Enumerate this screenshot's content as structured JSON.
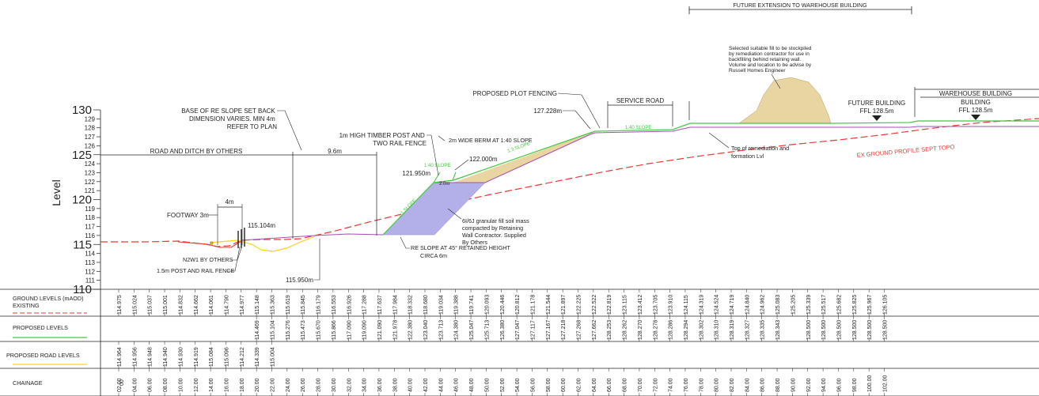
{
  "axis": {
    "ylabel": "Level",
    "ticks": [
      "130",
      "129",
      "128",
      "127",
      "126",
      "125",
      "124",
      "123",
      "122",
      "121",
      "120",
      "119",
      "118",
      "117",
      "116",
      "115",
      "114",
      "113",
      "112",
      "111",
      "110"
    ]
  },
  "annotations": {
    "future_extension": "FUTURE EXTENSION TO WAREHOUSE BUILDING",
    "fill_note": [
      "Selected suitable fill to be stockpiled",
      "by remediation contractor for use in",
      "backfilling behind retaining wall.",
      "Volume and location to be advise by",
      "Russell Homes Engineer"
    ],
    "plot_fencing": "PROPOSED PLOT FENCING",
    "service_road": "SERVICE ROAD",
    "future_building": "FUTURE BUILDING",
    "future_ffl": "FFL 128.5m",
    "warehouse_building": "WAREHOUSE BUILDING",
    "building": "BUILDING",
    "building_ffl": "FFL 128.5m",
    "base_re_slope": [
      "BASE OF RE SLOPE SET BACK",
      "DIMENSION VARIES. MIN 4m",
      "REFER TO PLAN"
    ],
    "timber_post": [
      "1m HIGH TIMBER POST AND",
      "TWO RAIL FENCE"
    ],
    "berm": "2m WIDE BERM AT 1:40 SLOPE",
    "level_127": "127.228m",
    "level_122": "122.000m",
    "level_121": "121.950m",
    "berm_width": "2.0m",
    "slope_140_a": "1:40 SLOPE",
    "slope_140_b": "1:40 SLOPE",
    "slope_13": "1:3 SLOPE",
    "slope_11": "1:1 SLOPE",
    "road_ditch": "ROAD AND DITCH BY OTHERS",
    "dim_96": "9.6m",
    "dim_4m": "4m",
    "footway": "FOOTWAY 3m",
    "level_115": "115.104m",
    "n2w1": "N2W1 BY OTHERS",
    "post_rail": "1.5m POST AND RAIL FENCE",
    "level_115950": "115.950m",
    "granular": [
      "6I/6J granular fill soil mass",
      "compacted by Retaining",
      "Wall Contractor. Supplied",
      "By Others"
    ],
    "re_slope": [
      "RE SLOPE AT 45° RETAINED HEIGHT",
      "CIRCA 6m"
    ],
    "remediation": [
      "Top of remediation and",
      "formation Lvl"
    ],
    "ex_ground": "EX GROUND PROFILE SEPT TOPO"
  },
  "table": {
    "ground_label": [
      "GROUND LEVELS (mAOD)",
      "EXISTING"
    ],
    "proposed_label": "PROPOSED LEVELS",
    "road_label": "PROPOSED ROAD LEVELS",
    "chainage_label": "CHAINAGE",
    "chainage_start": "00",
    "chainage": [
      "02.00",
      "04.00",
      "06.00",
      "08.00",
      "10.00",
      "12.00",
      "14.00",
      "16.00",
      "18.00",
      "20.00",
      "22.00",
      "24.00",
      "26.00",
      "28.00",
      "30.00",
      "32.00",
      "34.00",
      "36.00",
      "38.00",
      "40.00",
      "42.00",
      "44.00",
      "46.00",
      "48.00",
      "50.00",
      "52.00",
      "54.00",
      "56.00",
      "58.00",
      "60.00",
      "62.00",
      "64.00",
      "66.00",
      "68.00",
      "70.00",
      "72.00",
      "74.00",
      "76.00",
      "78.00",
      "80.00",
      "82.00",
      "84.00",
      "86.00",
      "88.00",
      "90.00",
      "92.00",
      "94.00",
      "96.00",
      "98.00",
      "100.00",
      "102.00"
    ],
    "ground": [
      "114.975",
      "115.024",
      "115.037",
      "115.001",
      "114.832",
      "114.662",
      "114.061",
      "114.790",
      "114.977",
      "115.148",
      "115.363",
      "115.619",
      "115.845",
      "116.179",
      "116.553",
      "116.926",
      "117.288",
      "117.637",
      "117.984",
      "118.332",
      "118.680",
      "119.034",
      "119.388",
      "119.741",
      "120.093",
      "120.446",
      "120.812",
      "121.178",
      "121.544",
      "121.897",
      "122.225",
      "122.522",
      "122.819",
      "123.115",
      "123.412",
      "123.705",
      "123.910",
      "124.115",
      "124.319",
      "124.524",
      "124.719",
      "124.840",
      "124.962",
      "125.083",
      "125.205",
      "125.339",
      "125.517",
      "125.682",
      "125.825",
      "125.967",
      "126.105"
    ],
    "proposed": [
      "",
      "",
      "",
      "",
      "",
      "",
      "",
      "",
      "",
      "114.469",
      "115.104",
      "115.276",
      "115.473",
      "115.670",
      "115.866",
      "117.090",
      "119.090",
      "121.090",
      "121.978",
      "122.380",
      "123.040",
      "123.713",
      "124.380",
      "125.047",
      "125.713",
      "126.380",
      "127.047",
      "127.117",
      "127.167",
      "127.218",
      "127.268",
      "127.662",
      "128.253",
      "128.262",
      "128.270",
      "128.278",
      "128.286",
      "128.294",
      "128.302",
      "128.310",
      "128.319",
      "128.327",
      "128.335",
      "128.343",
      "",
      "128.500",
      "128.500",
      "128.500",
      "128.500",
      "128.500",
      "128.500"
    ],
    "road": [
      "114.964",
      "114.956",
      "114.948",
      "114.940",
      "114.930",
      "114.919",
      "115.084",
      "115.096",
      "114.212",
      "114.339",
      "115.004"
    ]
  },
  "colors": {
    "ground": "#e53935",
    "proposed": "#43c843",
    "road": "#ffd21a",
    "fill_mass": "#b3afe8",
    "stockpile": "#e8d5a2",
    "formation": "#a64db5"
  }
}
